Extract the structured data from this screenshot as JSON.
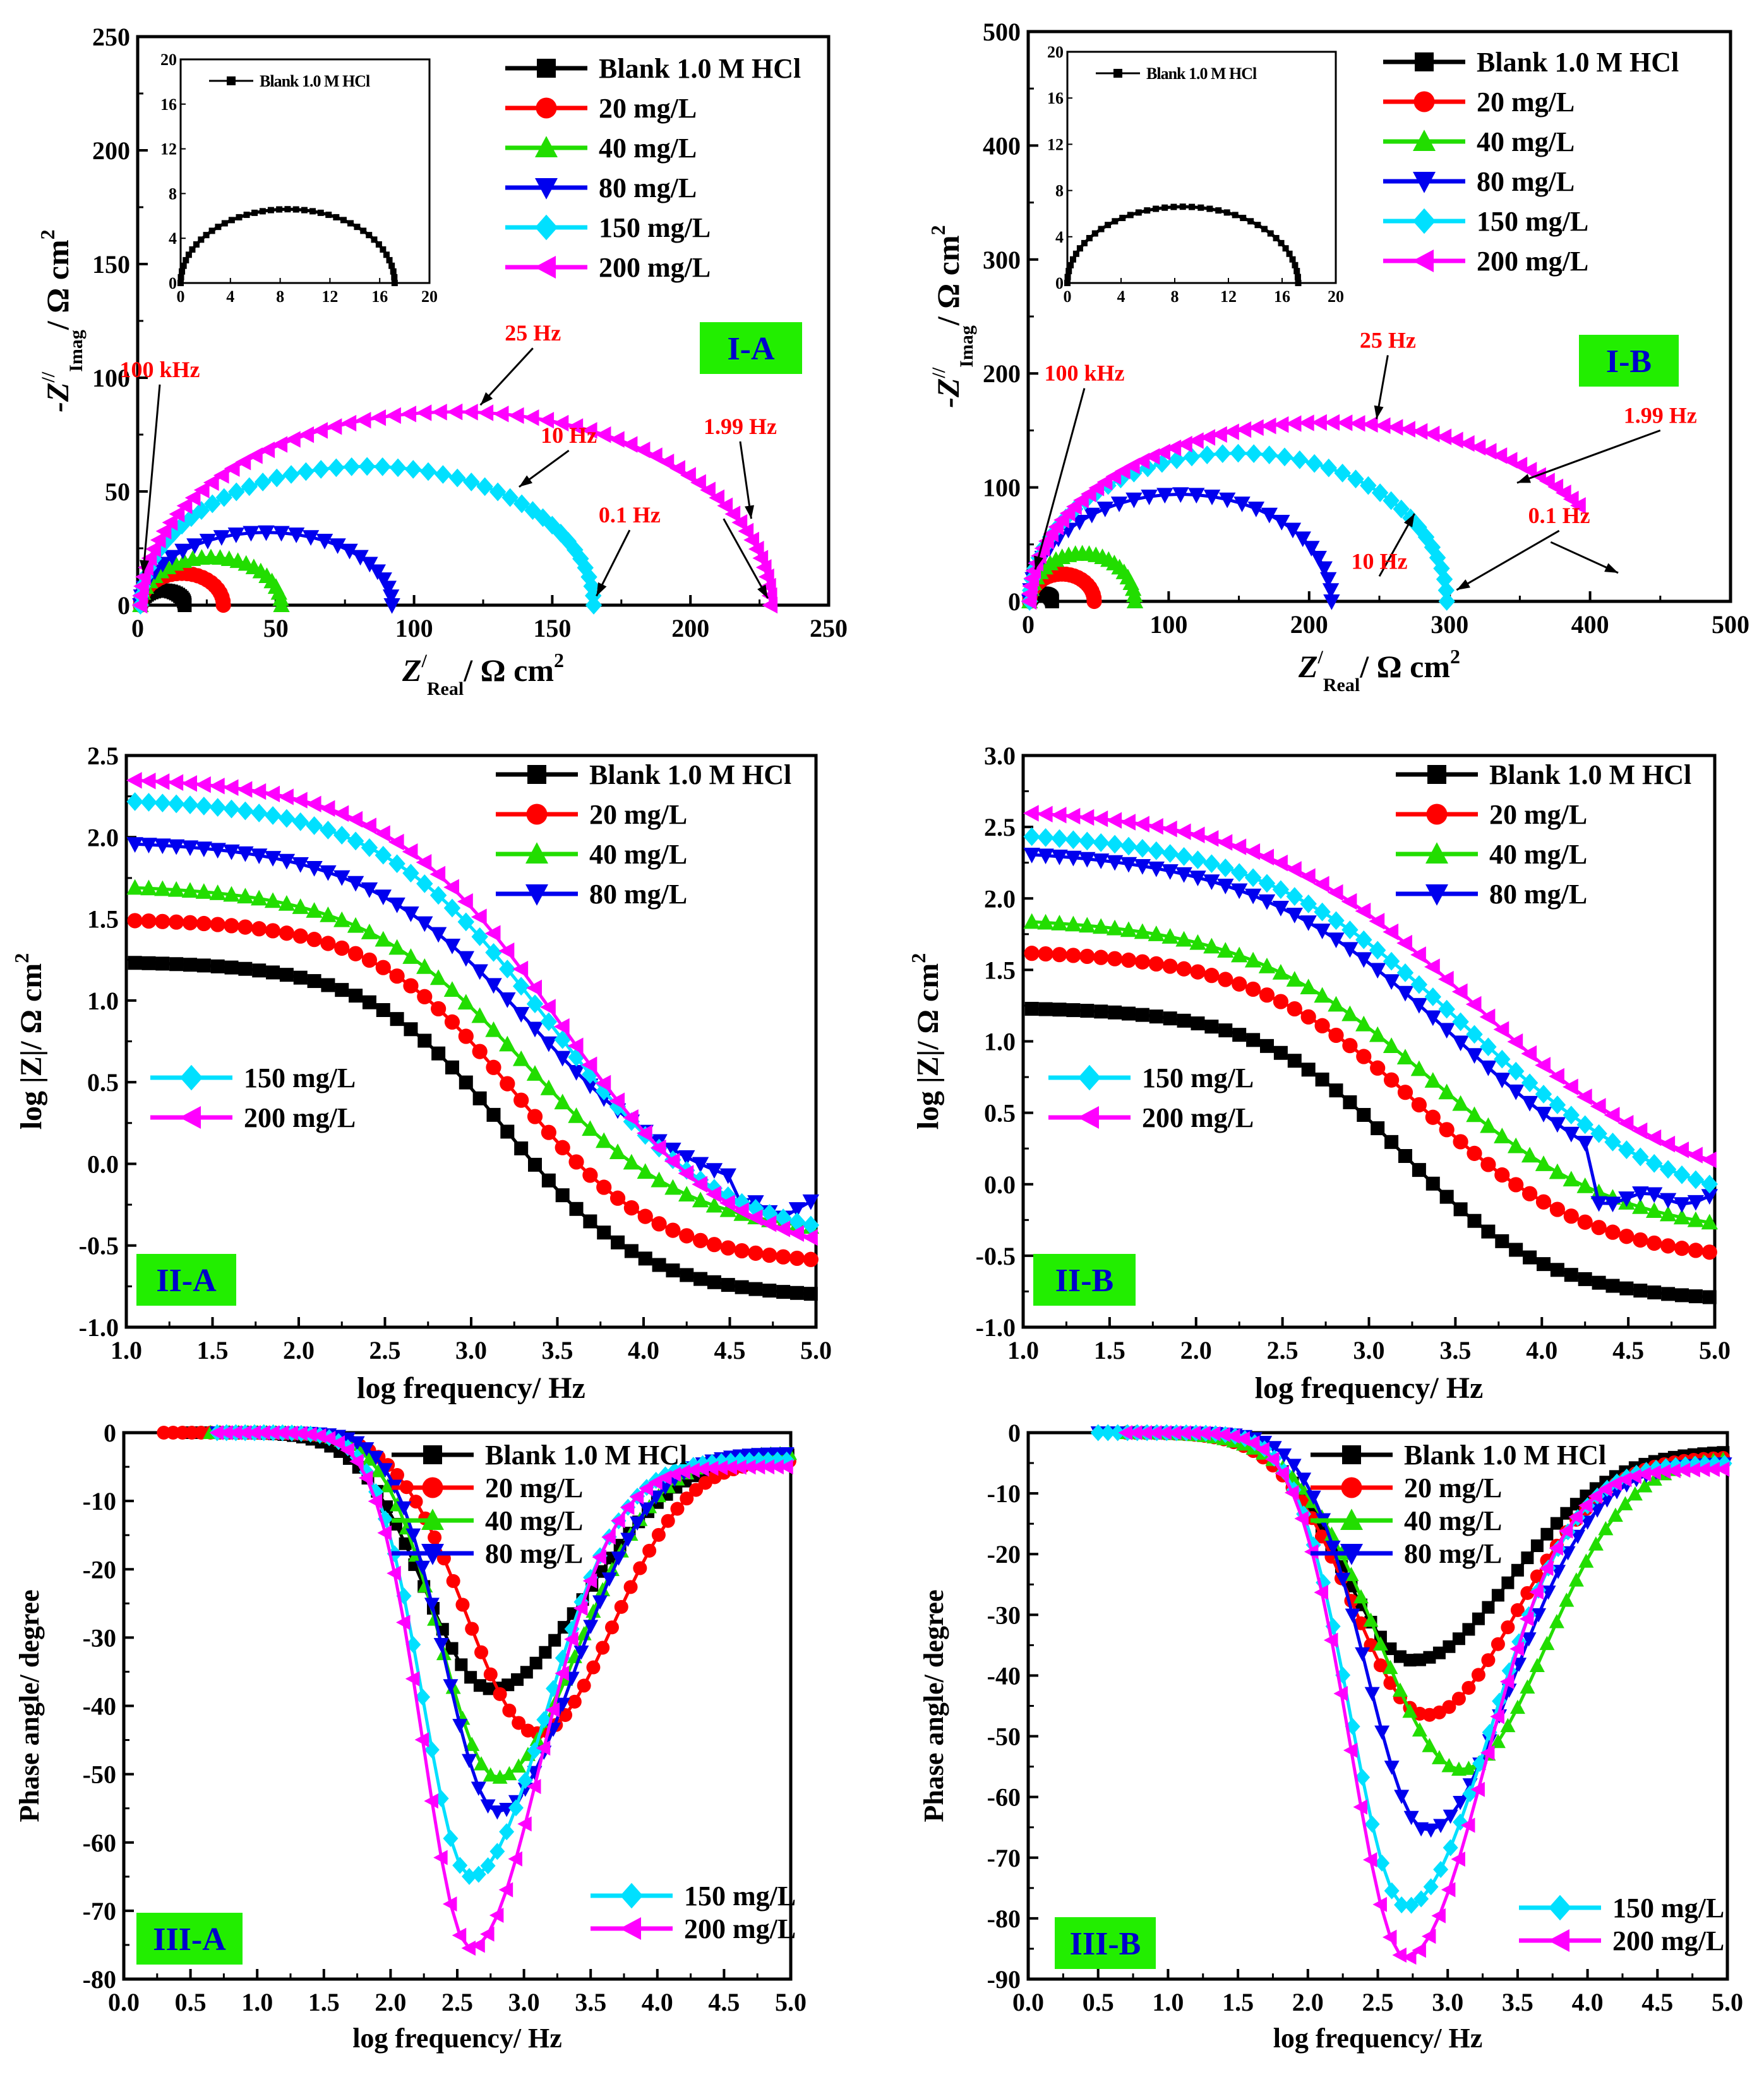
{
  "series_colors": {
    "blank": "#000000",
    "c20": "#ff0000",
    "c40": "#22dd00",
    "c80": "#0000ee",
    "c150": "#00e0ff",
    "c200": "#ff00ff"
  },
  "label_color": "#ff0000",
  "panel_label_bg": "#22ee00",
  "legend_labels": {
    "blank": "Blank 1.0 M HCl",
    "c20": "20 mg/L",
    "c40": "40 mg/L",
    "c80": "80 mg/L",
    "c150": "150 mg/L",
    "c200": "200 mg/L"
  },
  "inset_legend": "Blank 1.0 M HCl",
  "chart_data": [
    {
      "id": "I-A",
      "type": "scatter",
      "panel_label": "I-A",
      "xlabel_main": "Z",
      "xlabel_sup": "/",
      "xlabel_sub": "Real",
      "xlabel_rest": "/ Ω cm",
      "xlabel_exp": "2",
      "ylabel_main": "-Z",
      "ylabel_sup": "//",
      "ylabel_sub": "Imag",
      "ylabel_rest": "/ Ω cm",
      "ylabel_exp": "2",
      "xlim": [
        0,
        250
      ],
      "ylim": [
        0,
        250
      ],
      "xticks": [
        "0",
        "50",
        "100",
        "150",
        "200",
        "250"
      ],
      "yticks": [
        "0",
        "50",
        "100",
        "150",
        "200",
        "250"
      ],
      "series": [
        {
          "name": "Blank 1.0 M HCl",
          "shape": "semicircle",
          "r0": 1,
          "rt": 17,
          "peak": 6.5
        },
        {
          "name": "20 mg/L",
          "shape": "semicircle",
          "r0": 1,
          "rt": 31,
          "peak": 14
        },
        {
          "name": "40 mg/L",
          "shape": "semicircle",
          "r0": 1,
          "rt": 52,
          "peak": 21
        },
        {
          "name": "80 mg/L",
          "shape": "semicircle",
          "r0": 1,
          "rt": 92,
          "peak": 32
        },
        {
          "name": "150 mg/L",
          "shape": "semicircle",
          "r0": 1,
          "rt": 165,
          "peak": 61
        },
        {
          "name": "200 mg/L",
          "shape": "semicircle",
          "r0": 1,
          "rt": 229,
          "peak": 85
        }
      ],
      "inset": {
        "xlim": [
          0,
          20
        ],
        "ylim": [
          0,
          20
        ],
        "xticks": [
          "0",
          "4",
          "8",
          "12",
          "16",
          "20"
        ],
        "yticks": [
          "0",
          "4",
          "8",
          "12",
          "16",
          "20"
        ],
        "r0": 0,
        "rt": 17.2,
        "peak": 6.6
      },
      "annotations": [
        {
          "text": "100 kHz",
          "x": 8,
          "y": 97,
          "tx": 2,
          "ty": 14
        },
        {
          "text": "25 Hz",
          "x": 143,
          "y": 113,
          "tx": 124,
          "ty": 88
        },
        {
          "text": "10 Hz",
          "x": 156,
          "y": 68,
          "tx": 138,
          "ty": 52
        },
        {
          "text": "1.99 Hz",
          "x": 218,
          "y": 72,
          "tx": 222,
          "ty": 38
        },
        {
          "text": "0.1 Hz",
          "x": 178,
          "y": 33,
          "tx": 166,
          "ty": 4
        },
        {
          "text": "",
          "x": 212,
          "y": 38,
          "tx": 228,
          "ty": 3
        }
      ]
    },
    {
      "id": "I-B",
      "type": "scatter",
      "panel_label": "I-B",
      "xlabel_main": "Z",
      "xlabel_sup": "/",
      "xlabel_sub": "Real",
      "xlabel_rest": "/ Ω cm",
      "xlabel_exp": "2",
      "ylabel_main": "-Z",
      "ylabel_sup": "//",
      "ylabel_sub": "Imag",
      "ylabel_rest": "/ Ω cm",
      "ylabel_exp": "2",
      "xlim": [
        0,
        500
      ],
      "ylim": [
        0,
        500
      ],
      "xticks": [
        "0",
        "100",
        "200",
        "300",
        "400",
        "500"
      ],
      "yticks": [
        "0",
        "100",
        "200",
        "300",
        "400",
        "500"
      ],
      "series": [
        {
          "name": "Blank 1.0 M HCl",
          "shape": "semicircle",
          "r0": 1,
          "rt": 17,
          "peak": 7
        },
        {
          "name": "20 mg/L",
          "shape": "semicircle",
          "r0": 1,
          "rt": 47,
          "peak": 24
        },
        {
          "name": "40 mg/L",
          "shape": "semicircle",
          "r0": 1,
          "rt": 76,
          "peak": 42
        },
        {
          "name": "80 mg/L",
          "shape": "semicircle",
          "r0": 1,
          "rt": 216,
          "peak": 94
        },
        {
          "name": "150 mg/L",
          "shape": "semicircle",
          "r0": 1,
          "rt": 298,
          "peak": 130
        },
        {
          "name": "200 mg/L",
          "shape": "semicircle",
          "r0": 1,
          "rt": 425,
          "peak": 157,
          "end": 0.82
        }
      ],
      "inset": {
        "xlim": [
          0,
          20
        ],
        "ylim": [
          0,
          20
        ],
        "xticks": [
          "0",
          "4",
          "8",
          "12",
          "16",
          "20"
        ],
        "yticks": [
          "0",
          "4",
          "8",
          "12",
          "16",
          "20"
        ],
        "r0": 0,
        "rt": 17.2,
        "peak": 6.6
      },
      "annotations": [
        {
          "text": "100 kHz",
          "x": 40,
          "y": 187,
          "tx": 5,
          "ty": 28
        },
        {
          "text": "25 Hz",
          "x": 256,
          "y": 216,
          "tx": 248,
          "ty": 160
        },
        {
          "text": "10 Hz",
          "x": 250,
          "y": 22,
          "tx": 275,
          "ty": 77
        },
        {
          "text": "1.99 Hz",
          "x": 450,
          "y": 150,
          "tx": 348,
          "ty": 104
        },
        {
          "text": "0.1 Hz",
          "x": 378,
          "y": 62,
          "tx": 305,
          "ty": 10
        },
        {
          "text": "",
          "x": 372,
          "y": 52,
          "tx": 420,
          "ty": 25
        }
      ]
    },
    {
      "id": "II-A",
      "type": "line",
      "panel_label": "II-A",
      "xlabel": "log frequency/ Hz",
      "ylabel": "log |Z|/ Ω cm",
      "ylabel_exp": "2",
      "xlim": [
        1.0,
        5.0
      ],
      "ylim": [
        -1.0,
        2.5
      ],
      "xticks": [
        "1.0",
        "1.5",
        "2.0",
        "2.5",
        "3.0",
        "3.5",
        "4.0",
        "4.5",
        "5.0"
      ],
      "yticks": [
        "-1.0",
        "-0.5",
        "0.0",
        "0.5",
        "1.0",
        "1.5",
        "2.0",
        "2.5"
      ],
      "series": [
        {
          "name": "Blank 1.0 M HCl",
          "high": 1.24,
          "low": -0.82,
          "mid": 3.2,
          "w": 0.4
        },
        {
          "name": "20 mg/L",
          "high": 1.5,
          "low": -0.62,
          "mid": 3.25,
          "w": 0.42
        },
        {
          "name": "40 mg/L",
          "high": 1.71,
          "low": -0.45,
          "mid": 3.3,
          "w": 0.48
        },
        {
          "name": "80 mg/L",
          "high": 1.98,
          "low": -0.28,
          "mid": 3.35,
          "w": 0.5
        },
        {
          "name": "150 mg/L",
          "high": 2.24,
          "low": -0.5,
          "mid": 3.45,
          "w": 0.5
        },
        {
          "name": "200 mg/L",
          "high": 2.37,
          "low": -0.6,
          "mid": 3.5,
          "w": 0.5
        }
      ]
    },
    {
      "id": "II-B",
      "type": "line",
      "panel_label": "II-B",
      "xlabel": "log frequency/ Hz",
      "ylabel": "log |Z|/ Ω cm",
      "ylabel_exp": "2",
      "xlim": [
        1.0,
        5.0
      ],
      "ylim": [
        -1.0,
        3.0
      ],
      "xticks": [
        "1.0",
        "1.5",
        "2.0",
        "2.5",
        "3.0",
        "3.5",
        "4.0",
        "4.5",
        "5.0"
      ],
      "yticks": [
        "-1.0",
        "-0.5",
        "0.0",
        "0.5",
        "1.0",
        "1.5",
        "2.0",
        "2.5",
        "3.0"
      ],
      "series": [
        {
          "name": "Blank 1.0 M HCl",
          "high": 1.24,
          "low": -0.82,
          "mid": 3.2,
          "w": 0.42
        },
        {
          "name": "20 mg/L",
          "high": 1.64,
          "low": -0.55,
          "mid": 3.3,
          "w": 0.5
        },
        {
          "name": "40 mg/L",
          "high": 1.87,
          "low": -0.38,
          "mid": 3.35,
          "w": 0.55
        },
        {
          "name": "80 mg/L",
          "high": 2.35,
          "low": -0.3,
          "mid": 3.5,
          "w": 0.6
        },
        {
          "name": "150 mg/L",
          "high": 2.48,
          "low": -0.25,
          "mid": 3.55,
          "w": 0.62
        },
        {
          "name": "200 mg/L",
          "high": 2.64,
          "low": -0.1,
          "mid": 3.6,
          "w": 0.62
        }
      ]
    },
    {
      "id": "III-A",
      "type": "line",
      "panel_label": "III-A",
      "xlabel": "log frequency/ Hz",
      "ylabel": "Phase angle/ degree",
      "xlim": [
        0.0,
        5.0
      ],
      "ylim": [
        -80,
        0
      ],
      "xticks": [
        "0.0",
        "0.5",
        "1.0",
        "1.5",
        "2.0",
        "2.5",
        "3.0",
        "3.5",
        "4.0",
        "4.5",
        "5.0"
      ],
      "yticks": [
        "-80",
        "-70",
        "-60",
        "-50",
        "-40",
        "-30",
        "-20",
        "-10",
        "0"
      ],
      "series": [
        {
          "name": "Blank 1.0 M HCl",
          "start": 0.5,
          "min": -37.5,
          "fmin": 2.75,
          "sl": 0.7,
          "sr": 1.0,
          "endv": -3
        },
        {
          "name": "20 mg/L",
          "start": 0.3,
          "min": -44,
          "fmin": 3.1,
          "sl": 0.75,
          "sr": 0.8,
          "endv": -4
        },
        {
          "name": "40 mg/L",
          "start": 0.65,
          "min": -50.5,
          "fmin": 2.8,
          "sl": 0.6,
          "sr": 0.85,
          "endv": -3
        },
        {
          "name": "80 mg/L",
          "start": 0.7,
          "min": -55.5,
          "fmin": 2.8,
          "sl": 0.55,
          "sr": 0.82,
          "endv": -3
        },
        {
          "name": "150 mg/L",
          "start": 0.7,
          "min": -65,
          "fmin": 2.6,
          "sl": 0.5,
          "sr": 0.8,
          "endv": -4
        },
        {
          "name": "200 mg/L",
          "start": 0.7,
          "min": -75.5,
          "fmin": 2.6,
          "sl": 0.5,
          "sr": 0.75,
          "endv": -5
        }
      ]
    },
    {
      "id": "III-B",
      "type": "line",
      "panel_label": "III-B",
      "xlabel": "log frequency/ Hz",
      "ylabel": "Phase angle/ degree",
      "xlim": [
        0.0,
        5.0
      ],
      "ylim": [
        -90,
        0
      ],
      "xticks": [
        "0.0",
        "0.5",
        "1.0",
        "1.5",
        "2.0",
        "2.5",
        "3.0",
        "3.5",
        "4.0",
        "4.5",
        "5.0"
      ],
      "yticks": [
        "-90",
        "-80",
        "-70",
        "-60",
        "-50",
        "-40",
        "-30",
        "-20",
        "-10",
        "0"
      ],
      "series": [
        {
          "name": "Blank 1.0 M HCl",
          "start": 0.7,
          "min": -37.5,
          "fmin": 2.75,
          "sl": 0.7,
          "sr": 1.0,
          "endv": -3
        },
        {
          "name": "20 mg/L",
          "start": 0.7,
          "min": -46.5,
          "fmin": 2.85,
          "sl": 0.75,
          "sr": 0.9,
          "endv": -4
        },
        {
          "name": "40 mg/L",
          "start": 0.7,
          "min": -55.5,
          "fmin": 3.1,
          "sl": 0.85,
          "sr": 0.85,
          "endv": -4
        },
        {
          "name": "80 mg/L",
          "start": 0.5,
          "min": -65.5,
          "fmin": 2.85,
          "sl": 0.6,
          "sr": 0.85,
          "endv": -5
        },
        {
          "name": "150 mg/L",
          "start": 0.5,
          "min": -78,
          "fmin": 2.7,
          "sl": 0.55,
          "sr": 0.85,
          "endv": -5
        },
        {
          "name": "200 mg/L",
          "start": 0.7,
          "min": -86.5,
          "fmin": 2.7,
          "sl": 0.55,
          "sr": 0.8,
          "endv": -6
        }
      ]
    }
  ]
}
